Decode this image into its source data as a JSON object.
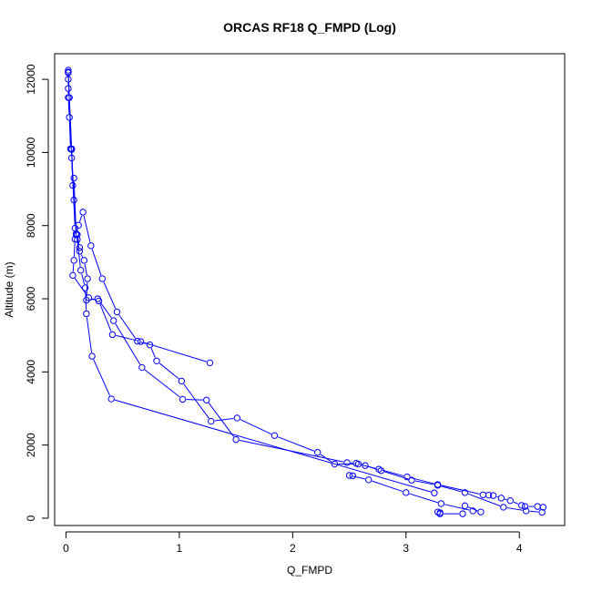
{
  "chart_data": {
    "type": "line",
    "title": "ORCAS RF18 Q_FMPD (Log)",
    "xlabel": "Q_FMPD",
    "ylabel": "Altitude (m)",
    "xlim": [
      -0.1,
      4.4
    ],
    "ylim": [
      -200,
      12700
    ],
    "x_ticks": [
      0,
      1,
      2,
      3,
      4
    ],
    "y_ticks": [
      0,
      2000,
      4000,
      6000,
      8000,
      10000,
      12000
    ],
    "grid": false,
    "legend": "none",
    "series_color": "#0000ff",
    "series": [
      {
        "x": [
          4.21,
          4.16,
          4.05,
          4.02,
          3.92,
          3.84,
          3.77,
          3.73,
          3.68,
          3.28,
          3.01,
          2.76,
          2.58,
          2.37,
          2.22,
          1.84,
          1.51,
          1.28,
          1.02,
          0.8,
          0.74,
          0.63,
          0.45,
          0.32,
          0.22,
          0.15,
          0.11,
          0.09,
          0.07,
          0.06,
          0.05,
          0.04,
          0.03,
          0.02,
          0.02,
          0.02,
          0.02
        ],
        "y": [
          300,
          320,
          320,
          350,
          480,
          550,
          620,
          630,
          640,
          920,
          1130,
          1340,
          1480,
          1480,
          1800,
          2260,
          2740,
          2650,
          3750,
          4300,
          4740,
          4840,
          5640,
          6550,
          7450,
          8370,
          8010,
          7780,
          9300,
          9100,
          10080,
          10100,
          10960,
          11500,
          11750,
          12000,
          12200
        ]
      },
      {
        "x": [
          0.02,
          0.03,
          0.05,
          0.07,
          0.09,
          0.12,
          0.16,
          0.19,
          0.18,
          0.28,
          0.42,
          0.67,
          1.03,
          1.24,
          1.5,
          2.48,
          2.56,
          2.64,
          2.78,
          3.05,
          3.28,
          3.52,
          3.86,
          4.06,
          4.2
        ],
        "y": [
          12250,
          11500,
          10100,
          8700,
          7750,
          7300,
          7050,
          6550,
          5960,
          6000,
          5400,
          4120,
          3250,
          3230,
          2150,
          1520,
          1500,
          1440,
          1300,
          1040,
          900,
          700,
          300,
          200,
          160
        ]
      },
      {
        "x": [
          0.02,
          0.05,
          0.08,
          0.1,
          0.13,
          0.17,
          0.18,
          0.23,
          0.4,
          3.25
        ],
        "y": [
          12180,
          9850,
          7930,
          7620,
          6780,
          6300,
          5590,
          4430,
          3260,
          690
        ]
      },
      {
        "x": [
          3.3,
          3.28,
          3.3,
          3.5,
          3.52,
          3.66,
          3.59,
          3.31,
          3.0,
          2.67,
          2.5,
          2.53
        ],
        "y": [
          150,
          170,
          120,
          120,
          340,
          170,
          200,
          400,
          700,
          1050,
          1170,
          1160
        ]
      },
      {
        "x": [
          0.12,
          0.1,
          0.08,
          0.07,
          0.06,
          0.2,
          0.29,
          0.41,
          0.66,
          1.27
        ],
        "y": [
          7400,
          7750,
          7630,
          7050,
          6640,
          6030,
          5940,
          5020,
          4830,
          4250
        ]
      }
    ]
  }
}
